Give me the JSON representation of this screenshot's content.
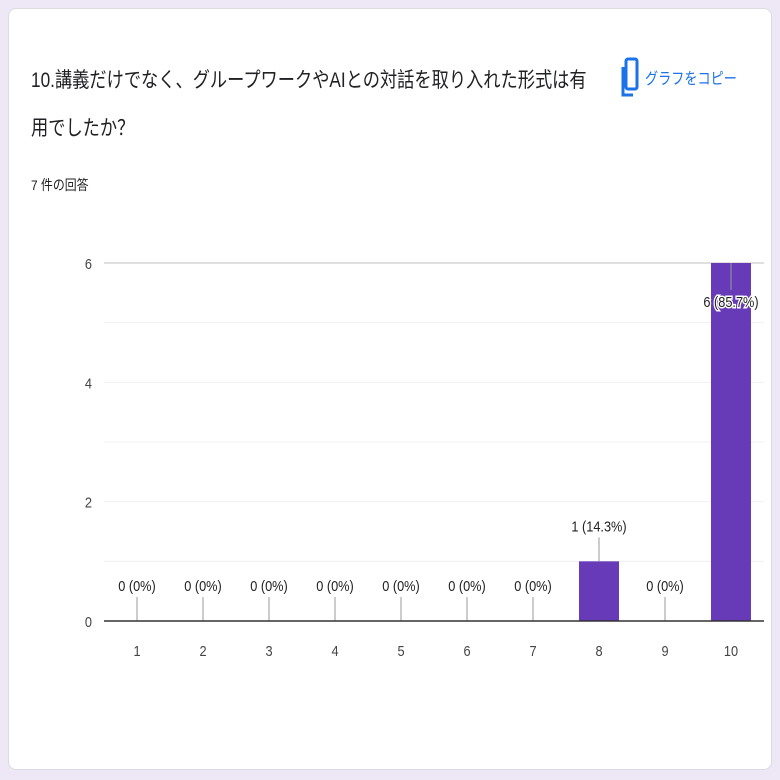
{
  "question": {
    "title": "10.講義だけでなく、グループワークやAIとの対話を取り入れた形式は有用でしたか？",
    "response_count": "7 件の回答"
  },
  "copy_chart": {
    "label": "グラフをコピー",
    "icon": "copy-icon",
    "color": "#1a73e8"
  },
  "chart_data": {
    "type": "bar",
    "categories": [
      "1",
      "2",
      "3",
      "4",
      "5",
      "6",
      "7",
      "8",
      "9",
      "10"
    ],
    "values": [
      0,
      0,
      0,
      0,
      0,
      0,
      0,
      1,
      0,
      6
    ],
    "data_labels": [
      "0 (0%)",
      "0 (0%)",
      "0 (0%)",
      "0 (0%)",
      "0 (0%)",
      "0 (0%)",
      "0 (0%)",
      "1 (14.3%)",
      "0 (0%)",
      "6 (85.7%)"
    ],
    "ylim": [
      0,
      6
    ],
    "yticks": [
      0,
      2,
      4,
      6
    ],
    "grid": true,
    "bar_color": "#673ab7",
    "legend": "none"
  }
}
